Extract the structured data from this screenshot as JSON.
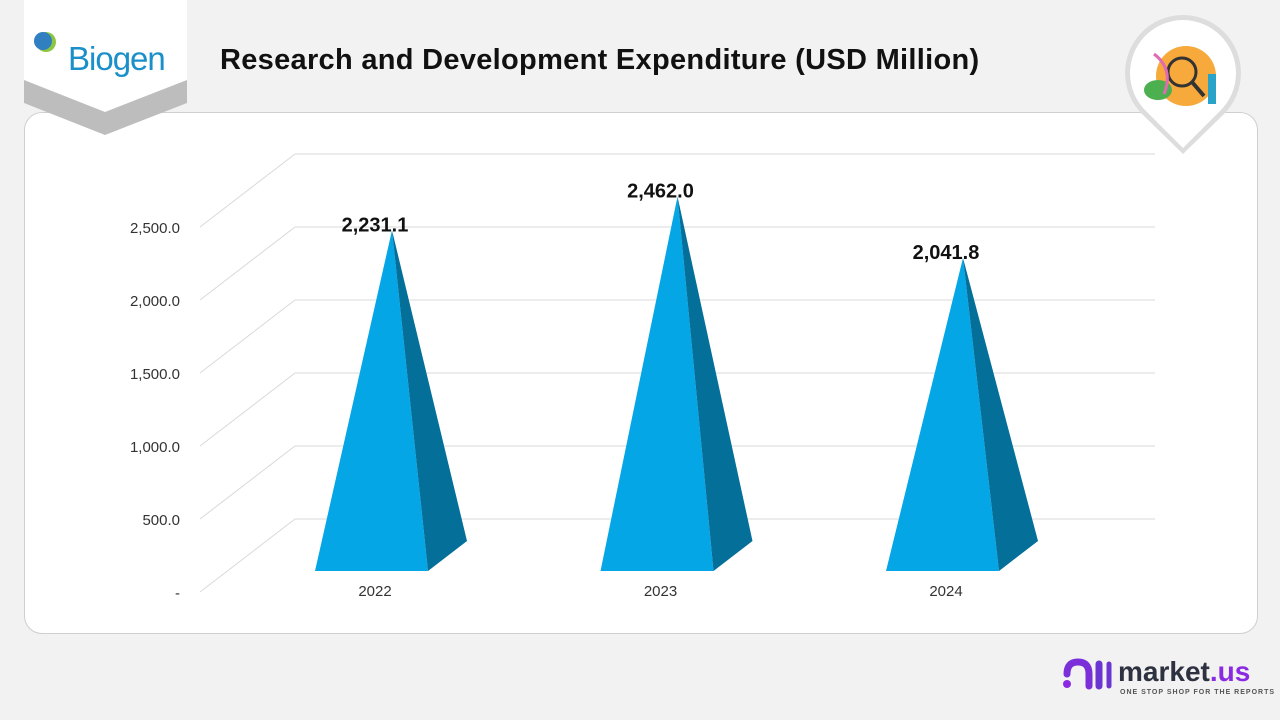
{
  "header": {
    "title": "Research and Development Expenditure (USD Million)",
    "company_logo": "Biogen",
    "corner_icon": "dna-magnifier-illustration"
  },
  "footer": {
    "brand": "market",
    "brand_suffix": ".us",
    "tagline": "ONE STOP SHOP FOR THE REPORTS"
  },
  "colors": {
    "front": "#05a6e6",
    "side": "#046f99",
    "brand": "#1a8fc9",
    "accent": "#8a2be2"
  },
  "chart_data": {
    "type": "bar",
    "style": "3d-pyramid",
    "title": "Research and Development Expenditure (USD Million)",
    "categories": [
      "2022",
      "2023",
      "2024"
    ],
    "values": [
      2231.1,
      2462.0,
      2041.8
    ],
    "data_labels": [
      "2,231.1",
      "2,462.0",
      "2,041.8"
    ],
    "ylim": [
      0,
      2500
    ],
    "yticks": [
      0,
      500,
      1000,
      1500,
      2000,
      2500
    ],
    "ytick_labels": [
      "-",
      "500.0",
      "1,000.0",
      "1,500.0",
      "2,000.0",
      "2,500.0"
    ],
    "grid": true
  }
}
